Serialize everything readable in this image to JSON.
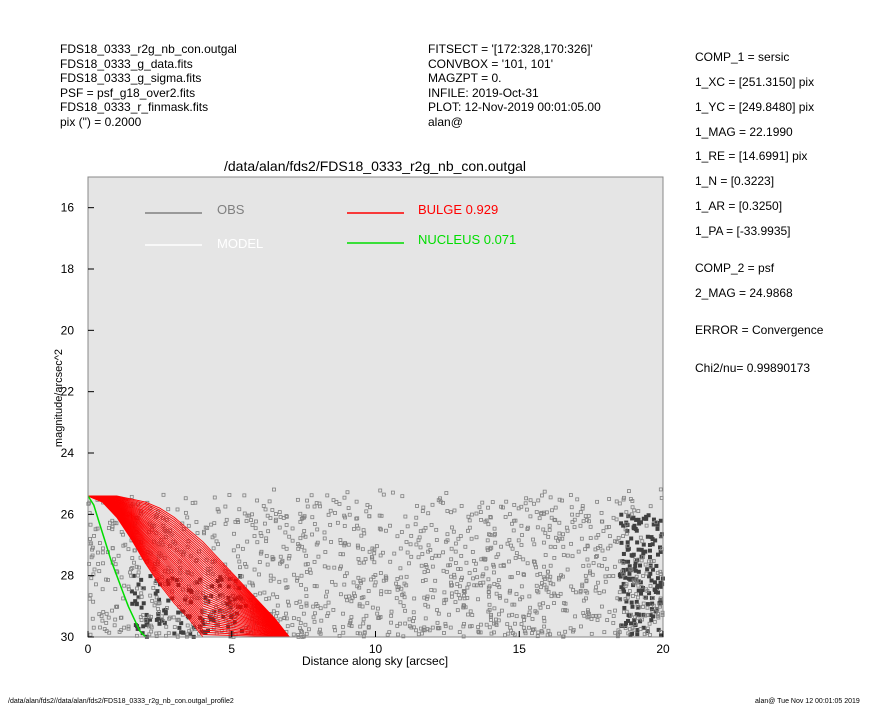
{
  "header_left": [
    "FDS18_0333_r2g_nb_con.outgal",
    "FDS18_0333_g_data.fits",
    "FDS18_0333_g_sigma.fits",
    "PSF    = psf_g18_over2.fits",
    "FDS18_0333_r_finmask.fits",
    "pix (\") =  0.2000"
  ],
  "header_mid": [
    "FITSECT = '[172:328,170:326]'",
    "CONVBOX = '101, 101'",
    "MAGZPT  =              0.",
    "INFILE: 2019-Oct-31",
    "PLOT: 12-Nov-2019 00:01:05.00",
    "alan@"
  ],
  "params": {
    "comp1": "COMP_1  = sersic",
    "xc": "1_XC    = [251.3150] pix",
    "yc": "1_YC    = [249.8480] pix",
    "mag": "1_MAG   = 22.1990",
    "re": "1_RE    = [14.6991] pix",
    "n": "1_N     = [0.3223]",
    "ar": "1_AR    = [0.3250]",
    "pa": "1_PA    = [-33.9935]",
    "comp2": "COMP_2  = psf",
    "mag2": "2_MAG   = 24.9868",
    "error": "ERROR   = Convergence",
    "chi2": "Chi2/nu=       0.99890173"
  },
  "footer": {
    "left": "/data/alan/fds2//data/alan/fds2/FDS18_0333_r2g_nb_con.outgal_profile2",
    "right": "alan@  Tue Nov 12 00:01:05 2019"
  },
  "colors": {
    "plot_bg": "#e5e5e5",
    "obs": "#808080",
    "model": "#ffffff",
    "bulge": "#ff0000",
    "nucleus": "#00dd00",
    "dark_points": "#404040"
  },
  "chart_data": {
    "type": "scatter",
    "title": "/data/alan/fds2/FDS18_0333_r2g_nb_con.outgal",
    "xlabel": "Distance along sky [arcsec]",
    "ylabel": "magnitude/arcsec^2",
    "xlim": [
      0,
      20
    ],
    "ylim": [
      30,
      15
    ],
    "y_inverted": true,
    "xticks": [
      0,
      5,
      10,
      15,
      20
    ],
    "yticks": [
      16,
      18,
      20,
      22,
      24,
      26,
      28,
      30
    ],
    "grid": false,
    "legend": [
      {
        "label": "OBS",
        "color": "#808080"
      },
      {
        "label": "MODEL",
        "color": "#ffffff"
      },
      {
        "label": "BULGE  0.929",
        "color": "#ff0000"
      },
      {
        "label": "NUCLEUS  0.071",
        "color": "#00dd00"
      }
    ],
    "series": [
      {
        "name": "NUCLEUS  0.071",
        "kind": "line",
        "color": "#00dd00",
        "x": [
          0.0,
          0.2,
          0.4,
          0.6,
          0.8,
          1.0,
          1.2,
          1.4,
          1.6,
          1.8,
          2.0
        ],
        "y": [
          25.4,
          25.7,
          26.3,
          26.9,
          27.5,
          28.0,
          28.5,
          29.0,
          29.4,
          29.8,
          30.0
        ]
      },
      {
        "name": "BULGE  0.929",
        "kind": "band",
        "color": "#ff0000",
        "x": [
          0.0,
          0.5,
          1.0,
          1.5,
          2.0,
          2.5,
          3.0,
          3.5,
          4.0,
          4.5,
          5.0,
          5.5,
          6.0,
          6.5,
          7.0
        ],
        "y_upper": [
          25.4,
          25.4,
          25.4,
          25.5,
          25.6,
          25.8,
          26.1,
          26.5,
          26.9,
          27.4,
          27.9,
          28.4,
          28.9,
          29.4,
          30.0
        ],
        "y_lower": [
          25.4,
          25.6,
          26.1,
          26.8,
          27.6,
          28.3,
          28.9,
          29.4,
          30.0,
          30.0,
          30.0,
          30.0,
          30.0,
          30.0,
          30.0
        ]
      },
      {
        "name": "OBS",
        "kind": "scatter",
        "color": "#808080",
        "description_range": {
          "x": [
            0,
            20
          ],
          "y": [
            24.6,
            30.0
          ]
        }
      }
    ]
  }
}
